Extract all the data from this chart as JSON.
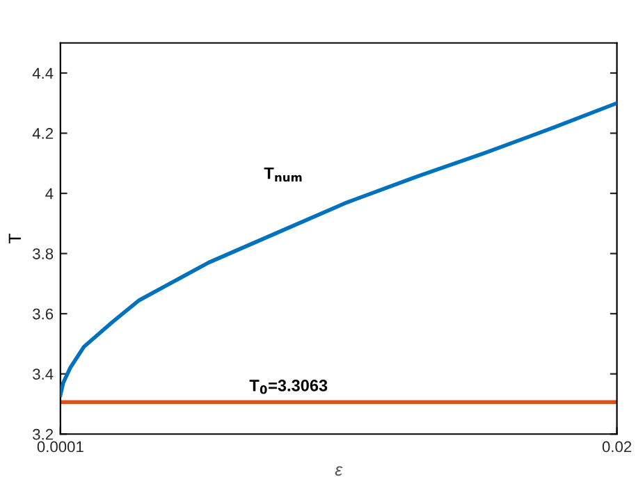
{
  "chart_data": {
    "type": "line",
    "xlabel": "ε",
    "ylabel": "T",
    "x": [
      0.0001,
      0.0002,
      0.00045,
      0.00094,
      0.00193,
      0.00292,
      0.0054,
      0.00787,
      0.01035,
      0.01282,
      0.0153,
      0.01777,
      0.02
    ],
    "series": [
      {
        "name": "T$_{num}$",
        "color": "#0072bd",
        "values": [
          3.33,
          3.37,
          3.42,
          3.49,
          3.57,
          3.645,
          3.77,
          3.87,
          3.97,
          4.055,
          4.135,
          4.22,
          4.3
        ]
      }
    ],
    "ref_lines": [
      {
        "axis": "y",
        "value": 3.3063,
        "label": "T$_{0}$=3.3063",
        "color": "#d95319"
      }
    ],
    "xlim": [
      0.0001,
      0.02
    ],
    "xticks": [
      0.0001,
      0.02
    ],
    "ylim": [
      3.2,
      4.5
    ],
    "yticks": [
      3.2,
      3.4,
      3.6,
      3.8,
      4,
      4.2,
      4.4
    ],
    "grid": false,
    "legend": false,
    "marker": "none",
    "line_style": "solid"
  }
}
